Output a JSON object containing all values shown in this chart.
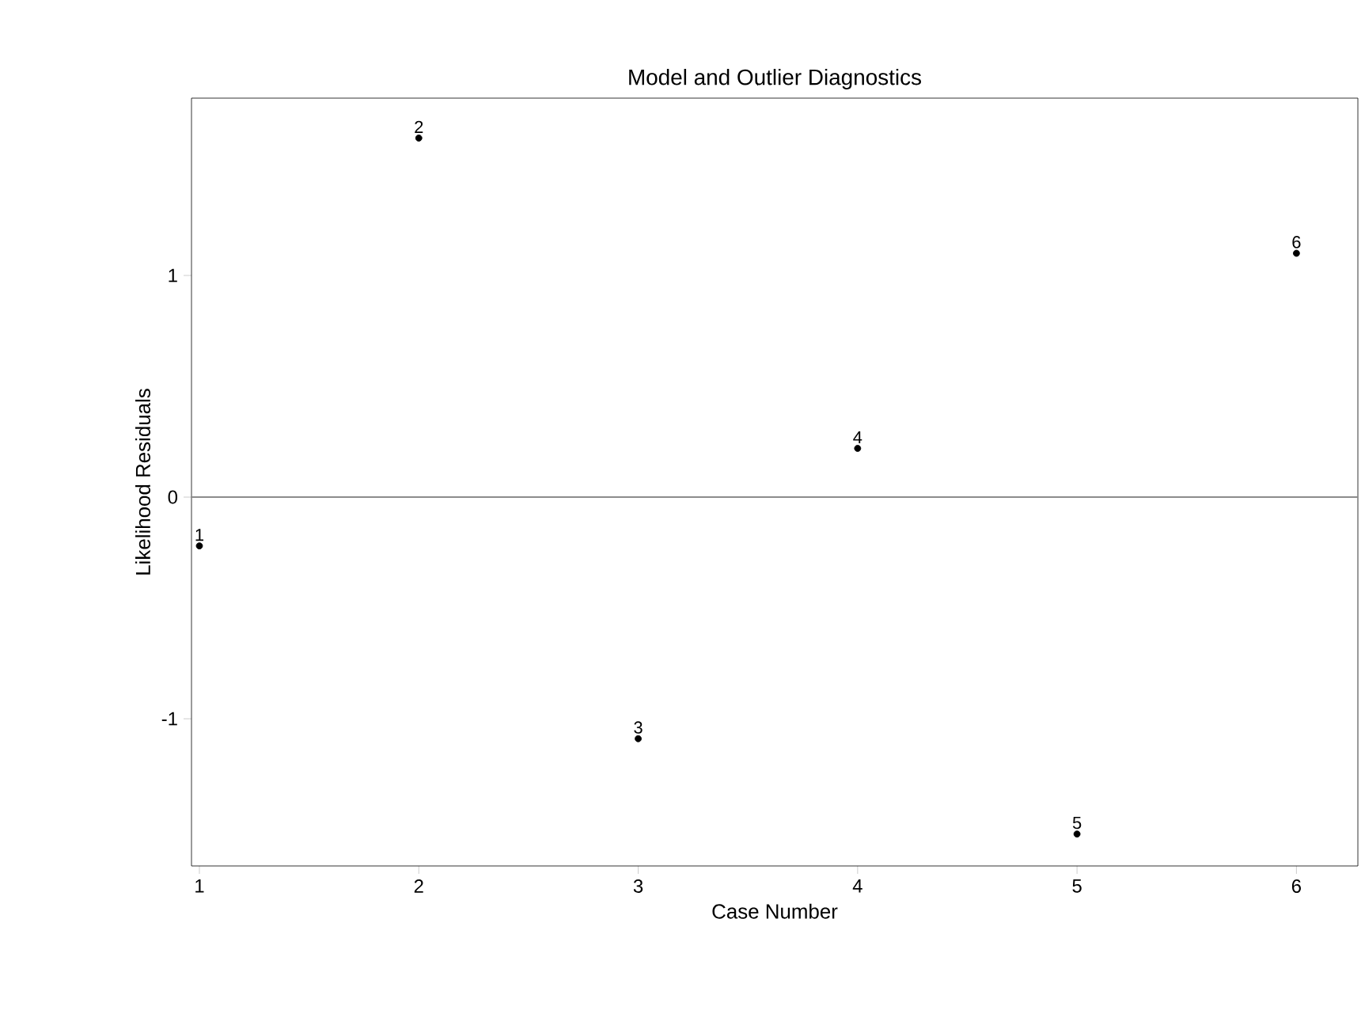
{
  "chart_data": {
    "type": "scatter",
    "title": "Model and Outlier Diagnostics",
    "xlabel": "Case Number",
    "ylabel": "Likelihood Residuals",
    "x": [
      1,
      2,
      3,
      4,
      5,
      6
    ],
    "values": [
      -0.22,
      1.62,
      -1.09,
      0.22,
      -1.52,
      1.1
    ],
    "annotations": [
      {
        "text": "1",
        "x": 1,
        "y": -0.22
      },
      {
        "text": "2",
        "x": 2,
        "y": 1.62
      },
      {
        "text": "3",
        "x": 3,
        "y": -1.09
      },
      {
        "text": "4",
        "x": 4,
        "y": 0.22
      },
      {
        "text": "5",
        "x": 5,
        "y": -1.52
      },
      {
        "text": "6",
        "x": 6,
        "y": 1.1
      }
    ],
    "color": "#000000",
    "xlim": [
      0.964,
      6.28
    ],
    "ylim": [
      -1.664,
      1.8
    ],
    "xticks": [
      1,
      2,
      3,
      4,
      5,
      6
    ],
    "yticks": [
      -1,
      0,
      1
    ],
    "ref_lines": [
      {
        "axis": "y",
        "value": 0,
        "color": "#8c8c8c"
      }
    ]
  }
}
